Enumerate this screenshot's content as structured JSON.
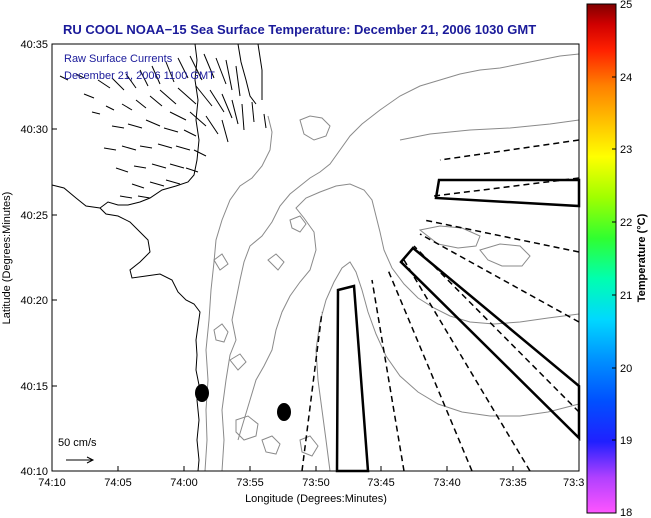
{
  "title": "RU COOL  NOAA−15  Sea Surface Temperature:  December 21, 2006 1030 GMT",
  "overlay": {
    "line1": "Raw Surface Currents",
    "line2": "December 21, 2006 1100 GMT"
  },
  "scale": {
    "label": "50 cm/s"
  },
  "map": {
    "xlabel": "Longitude (Degrees:Minutes)",
    "ylabel": "Latitude (Degrees:Minutes)",
    "xticks": [
      "74:10",
      "74:05",
      "74:00",
      "73:55",
      "73:50",
      "73:45",
      "73:40",
      "73:35",
      "73:3"
    ],
    "yticks": [
      "40:35",
      "40:30",
      "40:25",
      "40:20",
      "40:15",
      "40:10"
    ],
    "lon_range": [
      "74:10",
      "73:30"
    ],
    "lat_range": [
      "40:10",
      "40:35"
    ]
  },
  "colorbar": {
    "label": "Temperature (°C)",
    "ticks": [
      "25",
      "24",
      "23",
      "22",
      "21",
      "20",
      "19",
      "18"
    ],
    "range": [
      18,
      25
    ]
  }
}
